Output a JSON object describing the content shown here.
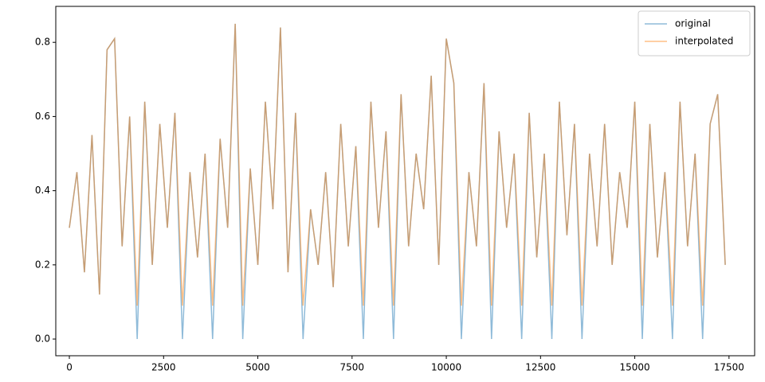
{
  "chart_data": {
    "type": "line",
    "x": [
      0,
      200,
      400,
      600,
      800,
      1000,
      1200,
      1400,
      1600,
      1800,
      2000,
      2200,
      2400,
      2600,
      2800,
      3000,
      3200,
      3400,
      3600,
      3800,
      4000,
      4200,
      4400,
      4600,
      4800,
      5000,
      5200,
      5400,
      5600,
      5800,
      6000,
      6200,
      6400,
      6600,
      6800,
      7000,
      7200,
      7400,
      7600,
      7800,
      8000,
      8200,
      8400,
      8600,
      8800,
      9000,
      9200,
      9400,
      9600,
      9800,
      10000,
      10200,
      10400,
      10600,
      10800,
      11000,
      11200,
      11400,
      11600,
      11800,
      12000,
      12200,
      12400,
      12600,
      12800,
      13000,
      13200,
      13400,
      13600,
      13800,
      14000,
      14200,
      14400,
      14600,
      14800,
      15000,
      15200,
      15400,
      15600,
      15800,
      16000,
      16200,
      16400,
      16600,
      16800,
      17000,
      17200,
      17400
    ],
    "series": [
      {
        "name": "original",
        "color": "#1f77b4",
        "values": [
          0.3,
          0.45,
          0.18,
          0.55,
          0.12,
          0.78,
          0.81,
          0.25,
          0.6,
          0,
          0.64,
          0.2,
          0.58,
          0.3,
          0.61,
          0,
          0.45,
          0.22,
          0.5,
          0,
          0.54,
          0.3,
          0.85,
          0,
          0.46,
          0.2,
          0.64,
          0.35,
          0.84,
          0.18,
          0.61,
          0,
          0.35,
          0.2,
          0.45,
          0.14,
          0.58,
          0.25,
          0.52,
          0,
          0.64,
          0.3,
          0.56,
          0,
          0.66,
          0.25,
          0.5,
          0.35,
          0.71,
          0.2,
          0.81,
          0.69,
          0,
          0.45,
          0.25,
          0.69,
          0,
          0.56,
          0.3,
          0.5,
          0,
          0.61,
          0.22,
          0.5,
          0,
          0.64,
          0.28,
          0.58,
          0,
          0.5,
          0.25,
          0.58,
          0.2,
          0.45,
          0.3,
          0.64,
          0,
          0.58,
          0.22,
          0.45,
          0,
          0.64,
          0.25,
          0.5,
          0,
          0.58,
          0.66,
          0.2
        ]
      },
      {
        "name": "interpolated",
        "color": "#ff7f0e",
        "values": [
          0.3,
          0.45,
          0.18,
          0.55,
          0.12,
          0.78,
          0.81,
          0.25,
          0.6,
          0.09,
          0.64,
          0.2,
          0.58,
          0.3,
          0.61,
          0.09,
          0.45,
          0.22,
          0.5,
          0.09,
          0.54,
          0.3,
          0.85,
          0.09,
          0.46,
          0.2,
          0.64,
          0.35,
          0.84,
          0.18,
          0.61,
          0.09,
          0.35,
          0.2,
          0.45,
          0.14,
          0.58,
          0.25,
          0.52,
          0.09,
          0.64,
          0.3,
          0.56,
          0.09,
          0.66,
          0.25,
          0.5,
          0.35,
          0.71,
          0.2,
          0.81,
          0.69,
          0.09,
          0.45,
          0.25,
          0.69,
          0.09,
          0.56,
          0.3,
          0.5,
          0.09,
          0.61,
          0.22,
          0.5,
          0.09,
          0.64,
          0.28,
          0.58,
          0.09,
          0.5,
          0.25,
          0.58,
          0.2,
          0.45,
          0.3,
          0.64,
          0.09,
          0.58,
          0.22,
          0.45,
          0.09,
          0.64,
          0.25,
          0.5,
          0.09,
          0.58,
          0.66,
          0.2
        ]
      }
    ],
    "xlim": [
      -360,
      18180
    ],
    "ylim": [
      -0.045,
      0.897
    ],
    "xticks": [
      0,
      2500,
      5000,
      7500,
      10000,
      12500,
      15000,
      17500
    ],
    "yticks": [
      {
        "value": 0,
        "label": "0.0"
      },
      {
        "value": 0.2,
        "label": "0.2"
      },
      {
        "value": 0.4,
        "label": "0.4"
      },
      {
        "value": 0.6,
        "label": "0.6"
      },
      {
        "value": 0.8,
        "label": "0.8"
      }
    ],
    "opacity": 0.5,
    "legend": "upper right"
  }
}
